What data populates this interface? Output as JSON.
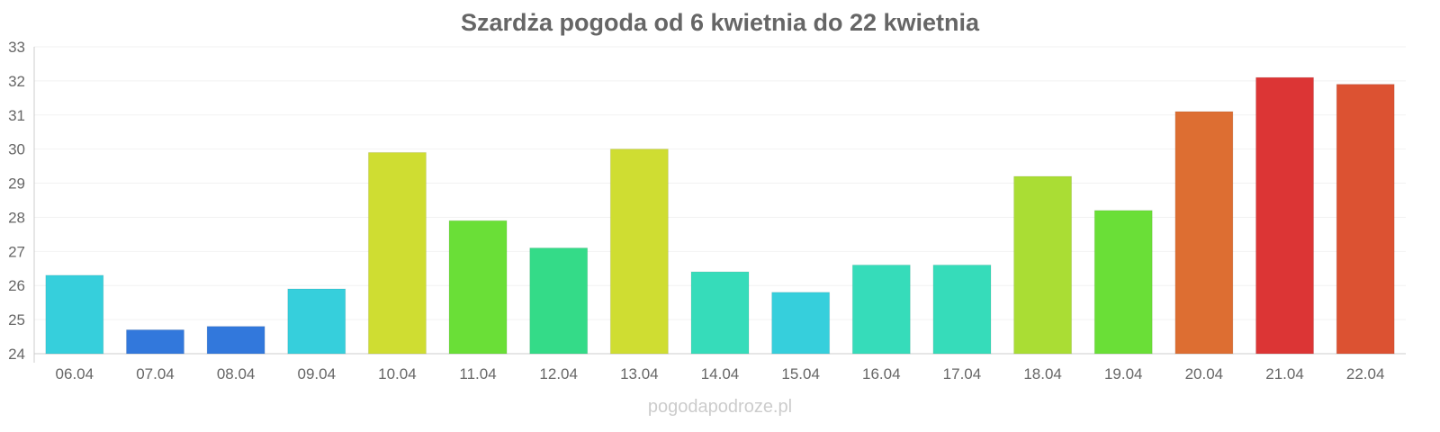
{
  "chart_data": {
    "type": "bar",
    "title": "Szardża pogoda od 6 kwietnia do 22 kwietnia",
    "xlabel": "",
    "ylabel": "",
    "ylim": [
      24,
      33
    ],
    "yticks": [
      24,
      25,
      26,
      27,
      28,
      29,
      30,
      31,
      32,
      33
    ],
    "grid": true,
    "categories": [
      "06.04",
      "07.04",
      "08.04",
      "09.04",
      "10.04",
      "11.04",
      "12.04",
      "13.04",
      "14.04",
      "15.04",
      "16.04",
      "17.04",
      "18.04",
      "19.04",
      "20.04",
      "21.04",
      "22.04"
    ],
    "values": [
      26.3,
      24.7,
      24.8,
      25.9,
      29.9,
      27.9,
      27.1,
      30.0,
      26.4,
      25.8,
      26.6,
      26.6,
      29.2,
      28.2,
      31.1,
      32.1,
      31.9
    ],
    "colors": [
      "#36cfdc",
      "#3278dc",
      "#3278dc",
      "#36cfdc",
      "#cfdd32",
      "#6adf37",
      "#34db88",
      "#cfdd32",
      "#36dcba",
      "#36cfdc",
      "#36dcba",
      "#36dcba",
      "#aadd34",
      "#6adf37",
      "#dd6e32",
      "#dc3535",
      "#dc5232"
    ]
  },
  "credit": "pogodapodroze.pl"
}
